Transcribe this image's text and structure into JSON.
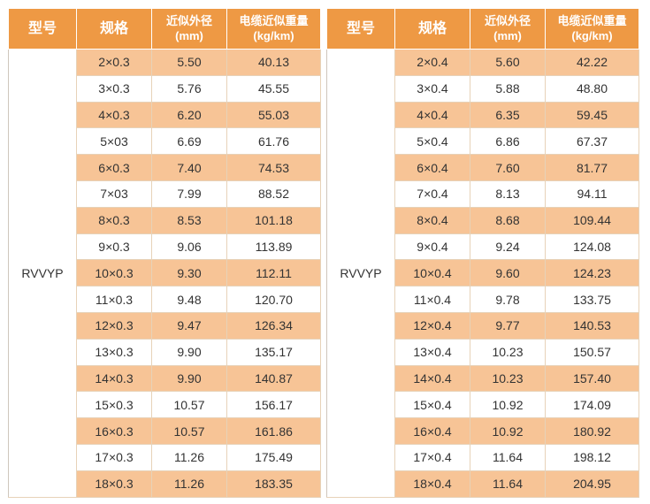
{
  "headers": {
    "model": "型号",
    "spec": "规格",
    "diameter_l1": "近似外径",
    "diameter_l2": "(mm)",
    "weight_l1": "电缆近似重量",
    "weight_l2": "(kg/km)"
  },
  "left": {
    "model": "RVVYP",
    "rows": [
      {
        "spec": "2×0.3",
        "diameter": "5.50",
        "weight": "40.13"
      },
      {
        "spec": "3×0.3",
        "diameter": "5.76",
        "weight": "45.55"
      },
      {
        "spec": "4×0.3",
        "diameter": "6.20",
        "weight": "55.03"
      },
      {
        "spec": "5×03",
        "diameter": "6.69",
        "weight": "61.76"
      },
      {
        "spec": "6×0.3",
        "diameter": "7.40",
        "weight": "74.53"
      },
      {
        "spec": "7×03",
        "diameter": "7.99",
        "weight": "88.52"
      },
      {
        "spec": "8×0.3",
        "diameter": "8.53",
        "weight": "101.18"
      },
      {
        "spec": "9×0.3",
        "diameter": "9.06",
        "weight": "113.89"
      },
      {
        "spec": "10×0.3",
        "diameter": "9.30",
        "weight": "112.11"
      },
      {
        "spec": "11×0.3",
        "diameter": "9.48",
        "weight": "120.70"
      },
      {
        "spec": "12×0.3",
        "diameter": "9.47",
        "weight": "126.34"
      },
      {
        "spec": "13×0.3",
        "diameter": "9.90",
        "weight": "135.17"
      },
      {
        "spec": "14×0.3",
        "diameter": "9.90",
        "weight": "140.87"
      },
      {
        "spec": "15×0.3",
        "diameter": "10.57",
        "weight": "156.17"
      },
      {
        "spec": "16×0.3",
        "diameter": "10.57",
        "weight": "161.86"
      },
      {
        "spec": "17×0.3",
        "diameter": "11.26",
        "weight": "175.49"
      },
      {
        "spec": "18×0.3",
        "diameter": "11.26",
        "weight": "183.35"
      }
    ]
  },
  "right": {
    "model": "RVVYP",
    "rows": [
      {
        "spec": "2×0.4",
        "diameter": "5.60",
        "weight": "42.22"
      },
      {
        "spec": "3×0.4",
        "diameter": "5.88",
        "weight": "48.80"
      },
      {
        "spec": "4×0.4",
        "diameter": "6.35",
        "weight": "59.45"
      },
      {
        "spec": "5×0.4",
        "diameter": "6.86",
        "weight": "67.37"
      },
      {
        "spec": "6×0.4",
        "diameter": "7.60",
        "weight": "81.77"
      },
      {
        "spec": "7×0.4",
        "diameter": "8.13",
        "weight": "94.11"
      },
      {
        "spec": "8×0.4",
        "diameter": "8.68",
        "weight": "109.44"
      },
      {
        "spec": "9×0.4",
        "diameter": "9.24",
        "weight": "124.08"
      },
      {
        "spec": "10×0.4",
        "diameter": "9.60",
        "weight": "124.23"
      },
      {
        "spec": "11×0.4",
        "diameter": "9.78",
        "weight": "133.75"
      },
      {
        "spec": "12×0.4",
        "diameter": "9.77",
        "weight": "140.53"
      },
      {
        "spec": "13×0.4",
        "diameter": "10.23",
        "weight": "150.57"
      },
      {
        "spec": "14×0.4",
        "diameter": "10.23",
        "weight": "157.40"
      },
      {
        "spec": "15×0.4",
        "diameter": "10.92",
        "weight": "174.09"
      },
      {
        "spec": "16×0.4",
        "diameter": "10.92",
        "weight": "180.92"
      },
      {
        "spec": "17×0.4",
        "diameter": "11.64",
        "weight": "198.12"
      },
      {
        "spec": "18×0.4",
        "diameter": "11.64",
        "weight": "204.95"
      }
    ]
  },
  "colors": {
    "header": "#ee9944",
    "stripe": "#f7c496",
    "text": "#333333"
  }
}
